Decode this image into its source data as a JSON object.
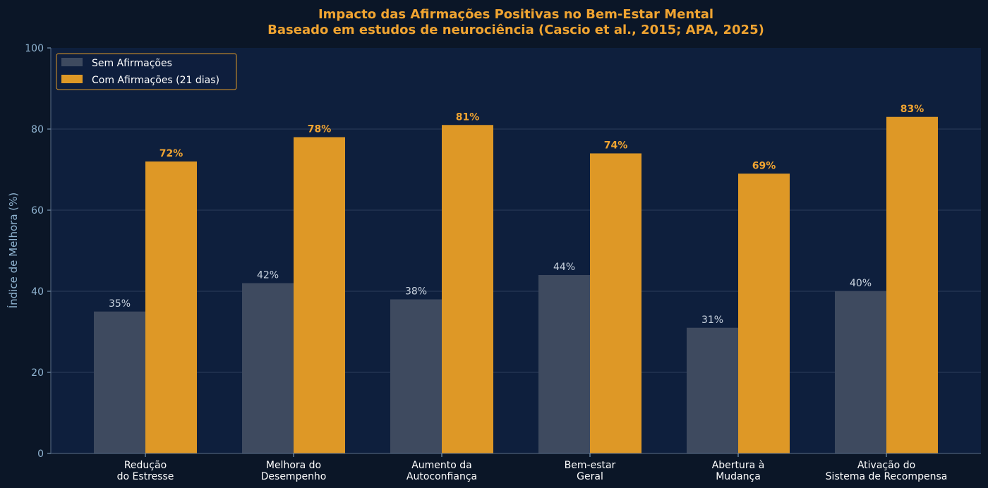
{
  "colors": {
    "page_bg": "#0b1627",
    "plot_bg": "#0e1f3d",
    "title": "#f0a431",
    "axis_text": "#8fb3d0",
    "tick_text": "#8fb3d0",
    "category_text": "#ffffff",
    "grid": "#2c3d5a",
    "series_without": "#3e4a5f",
    "series_with": "#de9826",
    "label_without": "#c9d3df",
    "label_with": "#f0a431",
    "legend_border": "#de9826",
    "legend_text": "#ffffff"
  },
  "chart_data": {
    "type": "bar",
    "title": "Impacto das Afirmações Positivas no Bem-Estar Mental",
    "subtitle": "Baseado em estudos de neurociência (Cascio et al., 2015; APA, 2025)",
    "xlabel": "",
    "ylabel": "Índice de Melhora (%)",
    "ylim": [
      0,
      100
    ],
    "yticks": [
      0,
      20,
      40,
      60,
      80,
      100
    ],
    "grid": true,
    "legend_position": "top-left",
    "categories": [
      [
        "Redução",
        "do Estresse"
      ],
      [
        "Melhora do",
        "Desempenho"
      ],
      [
        "Aumento da",
        "Autoconfiança"
      ],
      [
        "Bem-estar",
        "Geral"
      ],
      [
        "Abertura à",
        "Mudança"
      ],
      [
        "Ativação do",
        "Sistema de Recompensa"
      ]
    ],
    "series": [
      {
        "name": "Sem Afirmações",
        "values": [
          35,
          42,
          38,
          44,
          31,
          40
        ],
        "labels": [
          "35%",
          "42%",
          "38%",
          "44%",
          "31%",
          "40%"
        ]
      },
      {
        "name": "Com Afirmações (21 dias)",
        "values": [
          72,
          78,
          81,
          74,
          69,
          83
        ],
        "labels": [
          "72%",
          "78%",
          "81%",
          "74%",
          "69%",
          "83%"
        ]
      }
    ]
  }
}
